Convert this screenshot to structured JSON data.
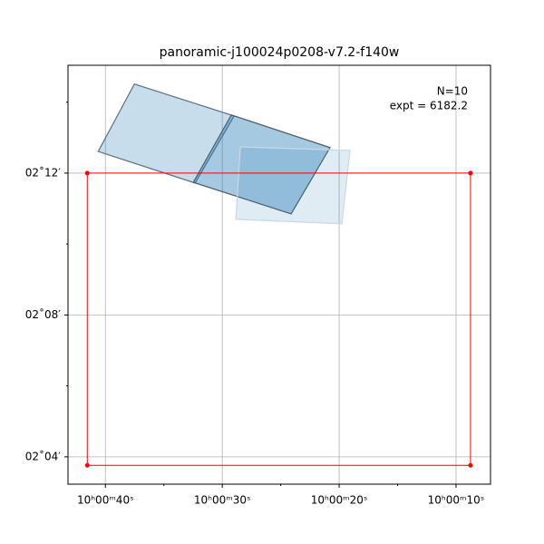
{
  "chart_data": {
    "type": "footprint",
    "title": "panoramic-j100024p0208-v7.2-f140w",
    "annotations": [
      "N=10",
      "expt = 6182.2"
    ],
    "xlim": [
      43.2,
      7.05
    ],
    "ylim": [
      3.23,
      15.04
    ],
    "xticks": [
      {
        "value": 40,
        "label": "10ʰ00ᵐ40ˢ"
      },
      {
        "value": 30,
        "label": "10ʰ00ᵐ30ˢ"
      },
      {
        "value": 20,
        "label": "10ʰ00ᵐ20ˢ"
      },
      {
        "value": 10,
        "label": "10ʰ00ᵐ10ˢ"
      }
    ],
    "yticks": [
      {
        "value": 12,
        "label": "02˚12′"
      },
      {
        "value": 8,
        "label": "02˚08′"
      },
      {
        "value": 4,
        "label": "02˚04′"
      }
    ],
    "xminor_ticks": [
      35,
      25,
      15
    ],
    "yminor_ticks": [
      14,
      10,
      6
    ],
    "grid": true,
    "polygons": [
      {
        "color": "#1f77b4",
        "opacity": 0.25,
        "edge": "#5a6f80",
        "x": [
          37.52,
          28.99,
          32.33,
          40.62
        ],
        "y": [
          14.51,
          13.61,
          11.72,
          12.61
        ]
      },
      {
        "color": "#1f77b4",
        "opacity": 0.4,
        "edge": "#4a5a66",
        "x": [
          29.22,
          20.78,
          24.11,
          32.48
        ],
        "y": [
          13.64,
          12.72,
          10.85,
          11.74
        ]
      },
      {
        "color": "#1f77b4",
        "opacity": 0.14,
        "edge": "#c8d8e6",
        "x": [
          28.45,
          19.07,
          19.77,
          28.84
        ],
        "y": [
          12.74,
          12.64,
          10.57,
          10.7
        ]
      }
    ],
    "outline": {
      "color": "#ff0000",
      "x": [
        41.55,
        8.76,
        8.76,
        41.55
      ],
      "y": [
        12,
        12,
        3.76,
        3.76
      ]
    }
  }
}
